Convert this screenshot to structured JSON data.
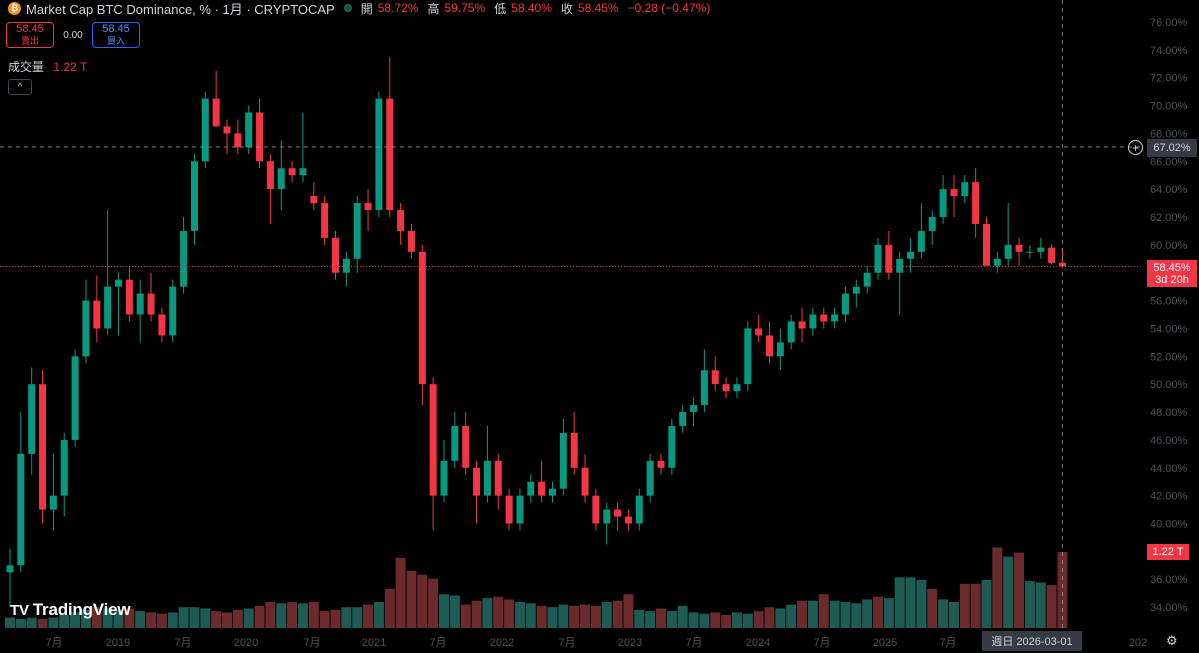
{
  "header": {
    "title": "Market Cap BTC Dominance, % · 1月 · CRYPTOCAP",
    "open_label": "開",
    "open": "58.72%",
    "high_label": "高",
    "high": "59.75%",
    "low_label": "低",
    "low": "58.40%",
    "close_label": "收",
    "close": "58.45%",
    "change": "−0.28 (−0.47%)"
  },
  "trade": {
    "sell_price": "58.45",
    "sell_label": "賣出",
    "spread": "0.00",
    "buy_price": "58.45",
    "buy_label": "買入"
  },
  "volume": {
    "label": "成交量",
    "value": "1.22 T"
  },
  "collapse_glyph": "^",
  "logo": {
    "text": "TradingView"
  },
  "crosshair": {
    "price_label": "67.02%",
    "price": 67.02,
    "time_label": "週日 2026-03-01"
  },
  "last_price": {
    "value": "58.45%",
    "countdown": "3d 20h",
    "price": 58.45
  },
  "last_volume_label": "1.22 T",
  "colors": {
    "up": "#089981",
    "down": "#f23645",
    "vol_up": "#1e5b55",
    "vol_down": "#6b2a2c",
    "background": "#000000",
    "axis_text": "#4c5058"
  },
  "chart_data": {
    "type": "candlestick",
    "y_axis": {
      "position": "right",
      "ticks": [
        34,
        36,
        38,
        40,
        42,
        44,
        46,
        48,
        50,
        52,
        54,
        56,
        58,
        60,
        62,
        64,
        66,
        68,
        70,
        72,
        74,
        76
      ],
      "labels": [
        "34.00%",
        "36.00%",
        "38.00%",
        "40.00%",
        "42.00%",
        "44.00%",
        "46.00%",
        "48.00%",
        "50.00%",
        "52.00%",
        "54.00%",
        "56.00%",
        "58.00%",
        "60.00%",
        "62.00%",
        "64.00%",
        "66.00%",
        "68.00%",
        "70.00%",
        "72.00%",
        "74.00%",
        "76.00%"
      ],
      "ylim": [
        32.5,
        77
      ]
    },
    "x_axis": {
      "labels": [
        "7月",
        "2019",
        "7月",
        "2020",
        "7月",
        "2021",
        "7月",
        "2022",
        "7月",
        "2023",
        "7月",
        "2024",
        "7月",
        "2025",
        "7月",
        "202"
      ]
    },
    "series": [
      {
        "t": "2018-02",
        "o": 36.5,
        "h": 38.2,
        "l": 34.0,
        "c": 37.0
      },
      {
        "t": "2018-03",
        "o": 37.0,
        "h": 48.0,
        "l": 36.5,
        "c": 45.0
      },
      {
        "t": "2018-04",
        "o": 45.0,
        "h": 51.2,
        "l": 43.5,
        "c": 50.0
      },
      {
        "t": "2018-05",
        "o": 50.0,
        "h": 51.0,
        "l": 40.0,
        "c": 41.0
      },
      {
        "t": "2018-06",
        "o": 41.0,
        "h": 45.0,
        "l": 39.5,
        "c": 42.0
      },
      {
        "t": "2018-07",
        "o": 42.0,
        "h": 46.5,
        "l": 40.5,
        "c": 46.0
      },
      {
        "t": "2018-08",
        "o": 46.0,
        "h": 52.5,
        "l": 45.5,
        "c": 52.0
      },
      {
        "t": "2018-09",
        "o": 52.0,
        "h": 57.5,
        "l": 51.5,
        "c": 56.0
      },
      {
        "t": "2018-10",
        "o": 56.0,
        "h": 57.8,
        "l": 53.0,
        "c": 54.0
      },
      {
        "t": "2018-11",
        "o": 54.0,
        "h": 62.5,
        "l": 53.5,
        "c": 57.0
      },
      {
        "t": "2018-12",
        "o": 57.0,
        "h": 58.0,
        "l": 53.5,
        "c": 57.5
      },
      {
        "t": "2019-01",
        "o": 57.5,
        "h": 58.5,
        "l": 54.5,
        "c": 55.0
      },
      {
        "t": "2019-02",
        "o": 55.0,
        "h": 57.5,
        "l": 53.0,
        "c": 56.5
      },
      {
        "t": "2019-03",
        "o": 56.5,
        "h": 58.0,
        "l": 54.5,
        "c": 55.0
      },
      {
        "t": "2019-04",
        "o": 55.0,
        "h": 55.5,
        "l": 53.0,
        "c": 53.5
      },
      {
        "t": "2019-05",
        "o": 53.5,
        "h": 57.5,
        "l": 53.0,
        "c": 57.0
      },
      {
        "t": "2019-06",
        "o": 57.0,
        "h": 62.0,
        "l": 56.5,
        "c": 61.0
      },
      {
        "t": "2019-07",
        "o": 61.0,
        "h": 66.5,
        "l": 60.0,
        "c": 66.0
      },
      {
        "t": "2019-08",
        "o": 66.0,
        "h": 71.0,
        "l": 65.5,
        "c": 70.5
      },
      {
        "t": "2019-09",
        "o": 70.5,
        "h": 72.5,
        "l": 68.5,
        "c": 68.5
      },
      {
        "t": "2019-10",
        "o": 68.5,
        "h": 69.0,
        "l": 66.5,
        "c": 68.0
      },
      {
        "t": "2019-11",
        "o": 68.0,
        "h": 69.0,
        "l": 66.5,
        "c": 67.0
      },
      {
        "t": "2019-12",
        "o": 67.0,
        "h": 70.0,
        "l": 66.5,
        "c": 69.5
      },
      {
        "t": "2020-01",
        "o": 69.5,
        "h": 70.5,
        "l": 65.5,
        "c": 66.0
      },
      {
        "t": "2020-02",
        "o": 66.0,
        "h": 66.5,
        "l": 61.5,
        "c": 64.0
      },
      {
        "t": "2020-03",
        "o": 64.0,
        "h": 67.5,
        "l": 62.5,
        "c": 65.5
      },
      {
        "t": "2020-04",
        "o": 65.5,
        "h": 66.0,
        "l": 64.5,
        "c": 65.0
      },
      {
        "t": "2020-05",
        "o": 65.0,
        "h": 69.5,
        "l": 64.5,
        "c": 65.5
      },
      {
        "t": "2020-06",
        "o": 63.5,
        "h": 64.5,
        "l": 62.5,
        "c": 63.0
      },
      {
        "t": "2020-07",
        "o": 63.0,
        "h": 63.5,
        "l": 60.0,
        "c": 60.5
      },
      {
        "t": "2020-08",
        "o": 60.5,
        "h": 61.0,
        "l": 57.5,
        "c": 58.0
      },
      {
        "t": "2020-09",
        "o": 58.0,
        "h": 59.5,
        "l": 57.0,
        "c": 59.0
      },
      {
        "t": "2020-10",
        "o": 59.0,
        "h": 63.5,
        "l": 58.0,
        "c": 63.0
      },
      {
        "t": "2020-11",
        "o": 63.0,
        "h": 64.0,
        "l": 61.0,
        "c": 62.5
      },
      {
        "t": "2020-12",
        "o": 62.5,
        "h": 71.0,
        "l": 62.0,
        "c": 70.5
      },
      {
        "t": "2021-01",
        "o": 70.5,
        "h": 73.5,
        "l": 62.0,
        "c": 62.5
      },
      {
        "t": "2021-02",
        "o": 62.5,
        "h": 63.0,
        "l": 60.0,
        "c": 61.0
      },
      {
        "t": "2021-03",
        "o": 61.0,
        "h": 61.5,
        "l": 59.0,
        "c": 59.5
      },
      {
        "t": "2021-04",
        "o": 59.5,
        "h": 60.0,
        "l": 48.5,
        "c": 50.0
      },
      {
        "t": "2021-05",
        "o": 50.0,
        "h": 50.5,
        "l": 39.5,
        "c": 42.0
      },
      {
        "t": "2021-06",
        "o": 42.0,
        "h": 46.0,
        "l": 41.5,
        "c": 44.5
      },
      {
        "t": "2021-07",
        "o": 44.5,
        "h": 48.0,
        "l": 44.0,
        "c": 47.0
      },
      {
        "t": "2021-08",
        "o": 47.0,
        "h": 48.0,
        "l": 43.5,
        "c": 44.0
      },
      {
        "t": "2021-09",
        "o": 44.0,
        "h": 44.5,
        "l": 40.0,
        "c": 42.0
      },
      {
        "t": "2021-10",
        "o": 42.0,
        "h": 47.0,
        "l": 41.5,
        "c": 44.5
      },
      {
        "t": "2021-11",
        "o": 44.5,
        "h": 45.0,
        "l": 41.0,
        "c": 42.0
      },
      {
        "t": "2021-12",
        "o": 42.0,
        "h": 42.5,
        "l": 39.5,
        "c": 40.0
      },
      {
        "t": "2022-01",
        "o": 40.0,
        "h": 42.5,
        "l": 39.5,
        "c": 42.0
      },
      {
        "t": "2022-02",
        "o": 42.0,
        "h": 43.5,
        "l": 41.5,
        "c": 43.0
      },
      {
        "t": "2022-03",
        "o": 43.0,
        "h": 44.5,
        "l": 41.5,
        "c": 42.0
      },
      {
        "t": "2022-04",
        "o": 42.0,
        "h": 43.0,
        "l": 41.5,
        "c": 42.5
      },
      {
        "t": "2022-05",
        "o": 42.5,
        "h": 47.5,
        "l": 42.0,
        "c": 46.5
      },
      {
        "t": "2022-06",
        "o": 46.5,
        "h": 48.0,
        "l": 43.5,
        "c": 44.0
      },
      {
        "t": "2022-07",
        "o": 44.0,
        "h": 45.0,
        "l": 41.5,
        "c": 42.0
      },
      {
        "t": "2022-08",
        "o": 42.0,
        "h": 42.5,
        "l": 39.5,
        "c": 40.0
      },
      {
        "t": "2022-09",
        "o": 40.0,
        "h": 41.5,
        "l": 38.5,
        "c": 41.0
      },
      {
        "t": "2022-10",
        "o": 41.0,
        "h": 41.5,
        "l": 39.5,
        "c": 40.5
      },
      {
        "t": "2022-11",
        "o": 40.5,
        "h": 41.0,
        "l": 39.5,
        "c": 40.0
      },
      {
        "t": "2022-12",
        "o": 40.0,
        "h": 42.5,
        "l": 39.5,
        "c": 42.0
      },
      {
        "t": "2023-01",
        "o": 42.0,
        "h": 45.0,
        "l": 41.5,
        "c": 44.5
      },
      {
        "t": "2023-02",
        "o": 44.5,
        "h": 45.0,
        "l": 43.5,
        "c": 44.0
      },
      {
        "t": "2023-03",
        "o": 44.0,
        "h": 47.5,
        "l": 43.5,
        "c": 47.0
      },
      {
        "t": "2023-04",
        "o": 47.0,
        "h": 48.5,
        "l": 46.5,
        "c": 48.0
      },
      {
        "t": "2023-05",
        "o": 48.0,
        "h": 49.0,
        "l": 47.0,
        "c": 48.5
      },
      {
        "t": "2023-06",
        "o": 48.5,
        "h": 52.5,
        "l": 48.0,
        "c": 51.0
      },
      {
        "t": "2023-07",
        "o": 51.0,
        "h": 52.0,
        "l": 49.5,
        "c": 50.0
      },
      {
        "t": "2023-08",
        "o": 50.0,
        "h": 50.5,
        "l": 49.0,
        "c": 49.5
      },
      {
        "t": "2023-09",
        "o": 49.5,
        "h": 50.5,
        "l": 49.0,
        "c": 50.0
      },
      {
        "t": "2023-10",
        "o": 50.0,
        "h": 54.5,
        "l": 49.5,
        "c": 54.0
      },
      {
        "t": "2023-11",
        "o": 54.0,
        "h": 55.0,
        "l": 53.0,
        "c": 53.5
      },
      {
        "t": "2023-12",
        "o": 53.5,
        "h": 54.5,
        "l": 51.5,
        "c": 52.0
      },
      {
        "t": "2024-01",
        "o": 52.0,
        "h": 54.0,
        "l": 51.0,
        "c": 53.0
      },
      {
        "t": "2024-02",
        "o": 53.0,
        "h": 55.0,
        "l": 52.5,
        "c": 54.5
      },
      {
        "t": "2024-03",
        "o": 54.5,
        "h": 55.5,
        "l": 53.0,
        "c": 54.0
      },
      {
        "t": "2024-04",
        "o": 54.0,
        "h": 55.5,
        "l": 53.5,
        "c": 55.0
      },
      {
        "t": "2024-05",
        "o": 55.0,
        "h": 55.5,
        "l": 54.0,
        "c": 54.5
      },
      {
        "t": "2024-06",
        "o": 54.5,
        "h": 55.5,
        "l": 54.0,
        "c": 55.0
      },
      {
        "t": "2024-07",
        "o": 55.0,
        "h": 57.0,
        "l": 54.5,
        "c": 56.5
      },
      {
        "t": "2024-08",
        "o": 56.5,
        "h": 57.5,
        "l": 55.5,
        "c": 57.0
      },
      {
        "t": "2024-09",
        "o": 57.0,
        "h": 58.5,
        "l": 56.5,
        "c": 58.0
      },
      {
        "t": "2024-10",
        "o": 58.0,
        "h": 60.5,
        "l": 57.5,
        "c": 60.0
      },
      {
        "t": "2024-11",
        "o": 60.0,
        "h": 61.0,
        "l": 57.5,
        "c": 58.0
      },
      {
        "t": "2024-12",
        "o": 58.0,
        "h": 59.5,
        "l": 55.0,
        "c": 59.0
      },
      {
        "t": "2025-01",
        "o": 59.0,
        "h": 60.5,
        "l": 58.0,
        "c": 59.5
      },
      {
        "t": "2025-02",
        "o": 59.5,
        "h": 63.0,
        "l": 59.0,
        "c": 61.0
      },
      {
        "t": "2025-03",
        "o": 61.0,
        "h": 62.5,
        "l": 60.0,
        "c": 62.0
      },
      {
        "t": "2025-04",
        "o": 62.0,
        "h": 65.0,
        "l": 61.5,
        "c": 64.0
      },
      {
        "t": "2025-05",
        "o": 64.0,
        "h": 65.0,
        "l": 62.0,
        "c": 63.5
      },
      {
        "t": "2025-06",
        "o": 63.5,
        "h": 65.0,
        "l": 63.0,
        "c": 64.5
      },
      {
        "t": "2025-07",
        "o": 64.5,
        "h": 65.5,
        "l": 60.5,
        "c": 61.5
      },
      {
        "t": "2025-08",
        "o": 61.5,
        "h": 62.0,
        "l": 58.5,
        "c": 58.5
      },
      {
        "t": "2025-09",
        "o": 58.5,
        "h": 59.5,
        "l": 58.0,
        "c": 59.0
      },
      {
        "t": "2025-10",
        "o": 59.0,
        "h": 63.0,
        "l": 58.5,
        "c": 60.0
      },
      {
        "t": "2025-11",
        "o": 60.0,
        "h": 60.5,
        "l": 58.5,
        "c": 59.5
      },
      {
        "t": "2025-12",
        "o": 59.5,
        "h": 60.0,
        "l": 59.0,
        "c": 59.5
      },
      {
        "t": "2026-01",
        "o": 59.5,
        "h": 60.5,
        "l": 59.0,
        "c": 59.8
      },
      {
        "t": "2026-02",
        "o": 59.8,
        "h": 60.0,
        "l": 58.6,
        "c": 58.7
      },
      {
        "t": "2026-03",
        "o": 58.72,
        "h": 59.75,
        "l": 58.4,
        "c": 58.45
      }
    ],
    "volume": [
      0.08,
      0.07,
      0.08,
      0.07,
      0.08,
      0.1,
      0.12,
      0.14,
      0.16,
      0.15,
      0.14,
      0.15,
      0.13,
      0.12,
      0.11,
      0.12,
      0.16,
      0.16,
      0.15,
      0.13,
      0.12,
      0.14,
      0.15,
      0.17,
      0.2,
      0.19,
      0.2,
      0.19,
      0.2,
      0.13,
      0.14,
      0.16,
      0.16,
      0.18,
      0.2,
      0.3,
      0.54,
      0.44,
      0.41,
      0.38,
      0.26,
      0.25,
      0.18,
      0.21,
      0.23,
      0.24,
      0.22,
      0.2,
      0.19,
      0.17,
      0.16,
      0.18,
      0.17,
      0.18,
      0.17,
      0.2,
      0.21,
      0.26,
      0.14,
      0.13,
      0.15,
      0.13,
      0.17,
      0.12,
      0.11,
      0.12,
      0.1,
      0.12,
      0.11,
      0.13,
      0.16,
      0.15,
      0.18,
      0.21,
      0.21,
      0.26,
      0.21,
      0.2,
      0.19,
      0.22,
      0.24,
      0.23,
      0.39,
      0.39,
      0.37,
      0.3,
      0.22,
      0.2,
      0.34,
      0.34,
      0.37,
      0.62,
      0.55,
      0.58,
      0.36,
      0.35,
      0.33,
      1.22
    ],
    "volume_up": [
      true,
      true,
      true,
      false,
      true,
      true,
      true,
      true,
      false,
      true,
      true,
      false,
      true,
      false,
      false,
      true,
      true,
      true,
      true,
      false,
      false,
      false,
      true,
      false,
      false,
      true,
      false,
      true,
      false,
      false,
      false,
      true,
      true,
      false,
      true,
      false,
      false,
      false,
      false,
      false,
      true,
      true,
      false,
      false,
      true,
      false,
      false,
      true,
      true,
      false,
      true,
      true,
      false,
      false,
      false,
      true,
      false,
      false,
      true,
      true,
      false,
      true,
      true,
      true,
      true,
      false,
      false,
      true,
      true,
      false,
      false,
      true,
      true,
      false,
      true,
      false,
      true,
      true,
      true,
      true,
      false,
      true,
      true,
      true,
      true,
      false,
      true,
      true,
      false,
      false,
      true,
      false,
      true,
      false,
      true,
      true,
      false,
      false
    ]
  }
}
